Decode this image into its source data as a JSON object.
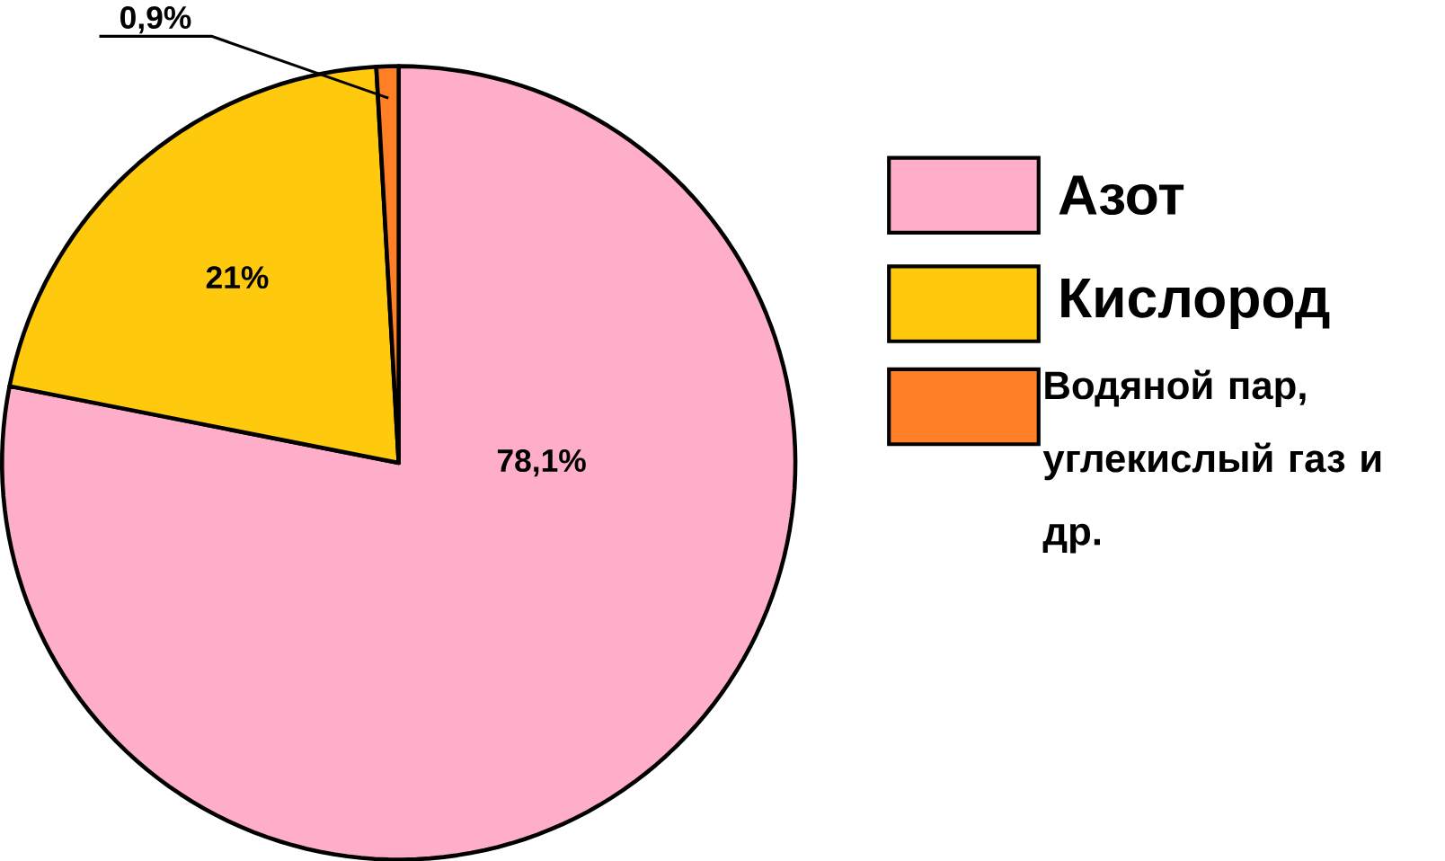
{
  "chart_data": {
    "type": "pie",
    "categories": [
      "Азот",
      "Кислород",
      "Водяной пар, углекислый газ и др."
    ],
    "values": [
      78.1,
      21,
      0.9
    ],
    "colors": [
      "#ffaec9",
      "#ffc90e",
      "#ff7f27"
    ],
    "value_labels": [
      "78,1%",
      "21%",
      "0,9%"
    ],
    "legend": "right"
  }
}
